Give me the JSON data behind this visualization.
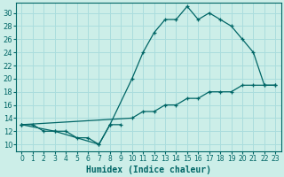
{
  "title": "",
  "xlabel": "Humidex (Indice chaleur)",
  "background_color": "#cceee8",
  "grid_color": "#aadddd",
  "line_color": "#006666",
  "xlim": [
    -0.5,
    23.5
  ],
  "ylim": [
    9,
    31.5
  ],
  "yticks": [
    10,
    12,
    14,
    16,
    18,
    20,
    22,
    24,
    26,
    28,
    30
  ],
  "xticks": [
    0,
    1,
    2,
    3,
    4,
    5,
    6,
    7,
    8,
    9,
    10,
    11,
    12,
    13,
    14,
    15,
    16,
    17,
    18,
    19,
    20,
    21,
    22,
    23
  ],
  "series": [
    {
      "x": [
        0,
        1,
        2,
        3,
        4,
        5,
        6,
        7,
        8,
        9
      ],
      "y": [
        13,
        13,
        12,
        12,
        12,
        11,
        11,
        10,
        13,
        13
      ]
    },
    {
      "x": [
        0,
        3,
        7,
        8,
        10,
        11,
        12,
        13,
        14,
        15,
        16,
        17,
        18,
        19,
        20,
        21,
        22,
        23
      ],
      "y": [
        13,
        12,
        10,
        13,
        20,
        24,
        27,
        29,
        29,
        31,
        29,
        30,
        29,
        28,
        26,
        24,
        19,
        19
      ]
    },
    {
      "x": [
        0,
        10,
        11,
        12,
        13,
        14,
        15,
        16,
        17,
        18,
        19,
        20,
        21,
        22,
        23
      ],
      "y": [
        13,
        14,
        15,
        15,
        16,
        16,
        17,
        17,
        18,
        18,
        18,
        19,
        19,
        19,
        19
      ]
    }
  ]
}
